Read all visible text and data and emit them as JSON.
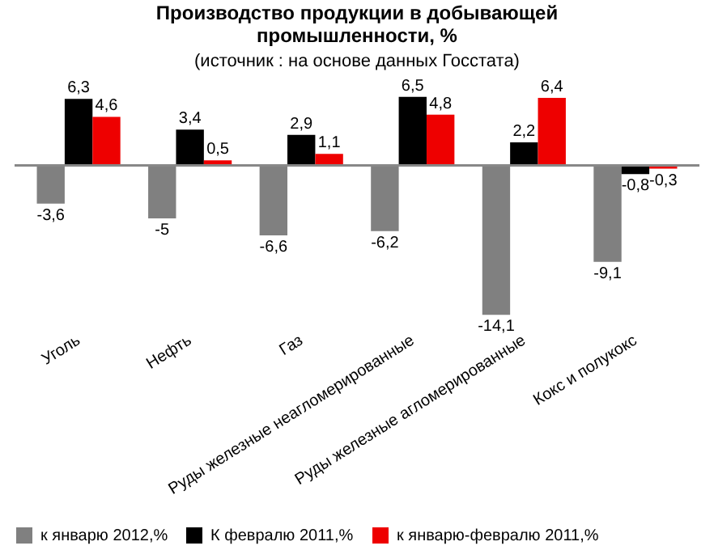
{
  "chart_data": {
    "type": "bar",
    "title": "Производство продукции в добывающей промышленности, %",
    "subtitle": "(источник : на основе данных Госстата)",
    "categories": [
      "Уголь",
      "Нефть",
      "Газ",
      "Руды железные неагломерированные",
      "Руды железные агломерированные",
      "Кокс и полукокс"
    ],
    "series": [
      {
        "name": "к январю 2012,%",
        "color": "#808080",
        "values": [
          -3.6,
          -5,
          -6.6,
          -6.2,
          -14.1,
          -9.1
        ],
        "value_labels": [
          "-3,6",
          "-5",
          "-6,6",
          "-6,2",
          "-14,1",
          "-9,1"
        ]
      },
      {
        "name": "К февралю 2011,%",
        "color": "#000000",
        "values": [
          6.3,
          3.4,
          2.9,
          6.5,
          2.2,
          -0.8
        ],
        "value_labels": [
          "6,3",
          "3,4",
          "2,9",
          "6,5",
          "2,2",
          "-0,8"
        ]
      },
      {
        "name": "к январю-февралю 2011,%",
        "color": "#ee0000",
        "values": [
          4.6,
          0.5,
          1.1,
          4.8,
          6.4,
          -0.3
        ],
        "value_labels": [
          "4,6",
          "0,5",
          "1,1",
          "4,8",
          "6,4",
          "-0,3"
        ]
      }
    ],
    "legend": "bottom",
    "grid": false
  }
}
